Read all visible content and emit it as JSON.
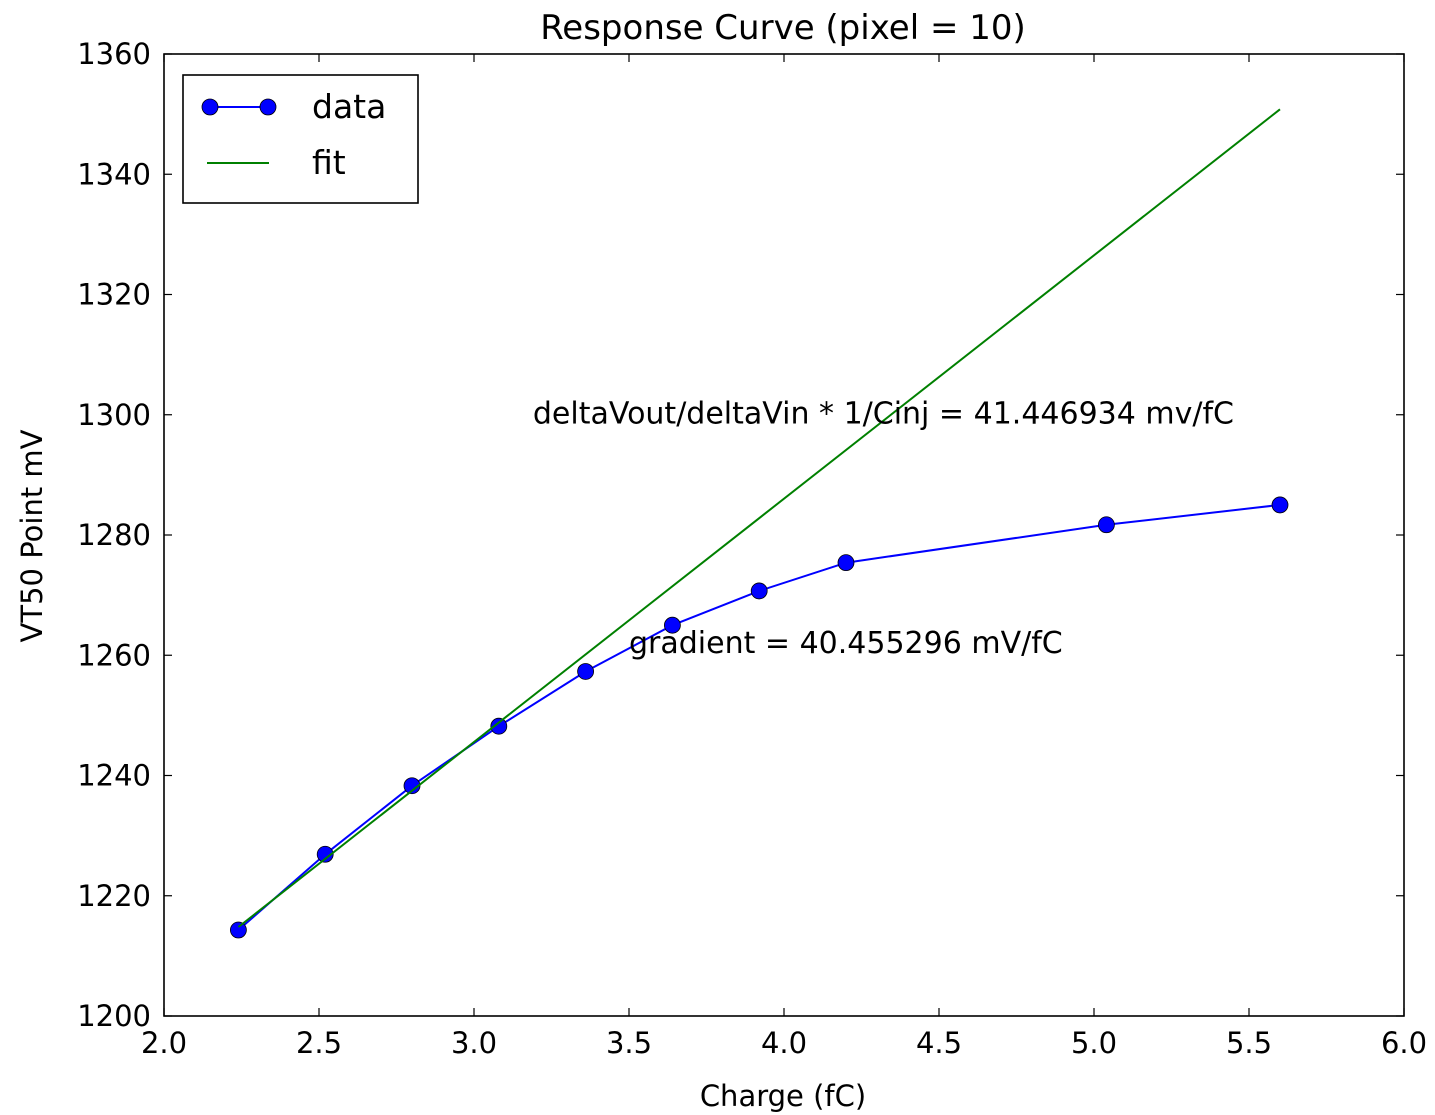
{
  "chart_data": {
    "type": "line",
    "title": "Response Curve (pixel = 10)",
    "xlabel": "Charge (fC)",
    "ylabel": "VT50 Point mV",
    "xlim": [
      2.0,
      6.0
    ],
    "ylim": [
      1200,
      1360
    ],
    "xticks": [
      2.0,
      2.5,
      3.0,
      3.5,
      4.0,
      4.5,
      5.0,
      5.5,
      6.0
    ],
    "xtick_labels": [
      "2.0",
      "2.5",
      "3.0",
      "3.5",
      "4.0",
      "4.5",
      "5.0",
      "5.5",
      "6.0"
    ],
    "yticks": [
      1200,
      1220,
      1240,
      1260,
      1280,
      1300,
      1320,
      1340,
      1360
    ],
    "ytick_labels": [
      "1200",
      "1220",
      "1240",
      "1260",
      "1280",
      "1300",
      "1320",
      "1340",
      "1360"
    ],
    "grid": false,
    "legend": {
      "placement": "top-left",
      "entries": [
        "data",
        "fit"
      ]
    },
    "series": [
      {
        "name": "data",
        "color": "#0000ff",
        "marker": "circle",
        "x": [
          2.24,
          2.52,
          2.8,
          3.08,
          3.36,
          3.64,
          3.92,
          4.2,
          5.04,
          5.6
        ],
        "y": [
          1214.3,
          1226.9,
          1238.3,
          1248.2,
          1257.3,
          1265.0,
          1270.7,
          1275.4,
          1281.7,
          1285.0
        ]
      },
      {
        "name": "fit",
        "color": "#008000",
        "marker": "none",
        "x": [
          2.24,
          5.6
        ],
        "y": [
          1214.8,
          1350.8
        ]
      }
    ],
    "annotations": [
      {
        "text": "deltaVout/deltaVin * 1/Cinj = 41.446934 mv/fC",
        "x": 3.19,
        "y": 1300.4
      },
      {
        "text": "gradient = 40.455296 mV/fC",
        "x": 3.5,
        "y": 1262.2
      }
    ]
  }
}
